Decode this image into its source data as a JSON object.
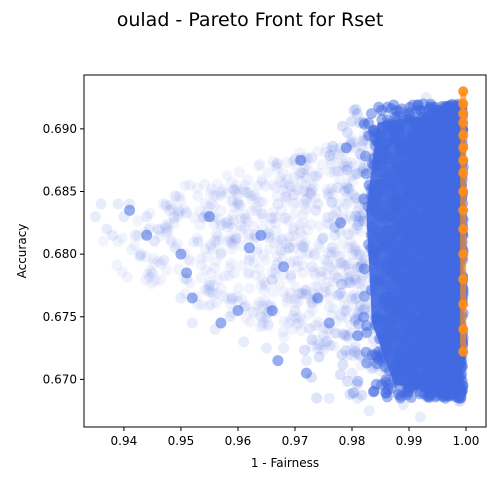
{
  "chart_data": {
    "type": "scatter",
    "title": "oulad - Pareto Front for Rset",
    "xlabel": "1 - Fairness",
    "ylabel": "Accuracy",
    "xlim": [
      0.933,
      1.0035
    ],
    "ylim": [
      0.6662,
      0.6943
    ],
    "xticks": [
      "0.94",
      "0.95",
      "0.96",
      "0.97",
      "0.98",
      "0.99",
      "1.00"
    ],
    "yticks": [
      "0.670",
      "0.675",
      "0.680",
      "0.685",
      "0.690"
    ],
    "grid": false,
    "legend": "none",
    "colors": {
      "rset": "#4169e1",
      "pareto": "#ff8c1a"
    },
    "series": [
      {
        "role": "rset",
        "marker": "circle",
        "alpha": 0.08,
        "points": [
          [
            0.935,
            0.683
          ],
          [
            0.936,
            0.684
          ],
          [
            0.937,
            0.682
          ],
          [
            0.938,
            0.6815
          ],
          [
            0.939,
            0.684
          ],
          [
            0.94,
            0.683
          ],
          [
            0.941,
            0.684
          ],
          [
            0.942,
            0.6815
          ],
          [
            0.943,
            0.68
          ],
          [
            0.944,
            0.683
          ],
          [
            0.945,
            0.6785
          ],
          [
            0.946,
            0.682
          ],
          [
            0.947,
            0.6795
          ],
          [
            0.948,
            0.6835
          ],
          [
            0.949,
            0.6805
          ],
          [
            0.95,
            0.6765
          ],
          [
            0.951,
            0.678
          ],
          [
            0.952,
            0.6745
          ],
          [
            0.953,
            0.681
          ],
          [
            0.954,
            0.683
          ],
          [
            0.955,
            0.6775
          ],
          [
            0.956,
            0.674
          ],
          [
            0.957,
            0.68
          ],
          [
            0.958,
            0.6825
          ],
          [
            0.959,
            0.6765
          ],
          [
            0.96,
            0.684
          ],
          [
            0.961,
            0.673
          ],
          [
            0.962,
            0.6795
          ],
          [
            0.963,
            0.6815
          ],
          [
            0.964,
            0.675
          ],
          [
            0.965,
            0.6725
          ],
          [
            0.966,
            0.678
          ],
          [
            0.967,
            0.684
          ],
          [
            0.968,
            0.6725
          ],
          [
            0.969,
            0.6805
          ],
          [
            0.97,
            0.6755
          ],
          [
            0.971,
            0.6865
          ],
          [
            0.972,
            0.6715
          ],
          [
            0.973,
            0.679
          ],
          [
            0.974,
            0.684
          ],
          [
            0.975,
            0.6735
          ],
          [
            0.976,
            0.6685
          ],
          [
            0.977,
            0.6815
          ],
          [
            0.978,
            0.6885
          ],
          [
            0.979,
            0.6755
          ],
          [
            0.98,
            0.6705
          ],
          [
            0.981,
            0.6685
          ],
          [
            0.982,
            0.6905
          ],
          [
            0.983,
            0.6675
          ],
          [
            0.984,
            0.6835
          ],
          [
            0.985,
            0.6915
          ],
          [
            0.986,
            0.6695
          ],
          [
            0.987,
            0.6755
          ],
          [
            0.988,
            0.6915
          ],
          [
            0.989,
            0.668
          ],
          [
            0.99,
            0.6845
          ],
          [
            0.991,
            0.6905
          ],
          [
            0.992,
            0.667
          ],
          [
            0.993,
            0.6925
          ],
          [
            0.994,
            0.6745
          ],
          [
            0.995,
            0.6915
          ],
          [
            0.996,
            0.6695
          ],
          [
            0.997,
            0.6885
          ],
          [
            0.998,
            0.6715
          ],
          [
            0.999,
            0.6685
          ],
          [
            0.9995,
            0.6895
          ]
        ]
      },
      {
        "role": "rset-highlight",
        "marker": "circle",
        "alpha": 0.55,
        "points": [
          [
            0.941,
            0.6835
          ],
          [
            0.944,
            0.6815
          ],
          [
            0.95,
            0.68
          ],
          [
            0.951,
            0.6785
          ],
          [
            0.952,
            0.6765
          ],
          [
            0.955,
            0.683
          ],
          [
            0.957,
            0.6745
          ],
          [
            0.96,
            0.6755
          ],
          [
            0.962,
            0.6805
          ],
          [
            0.964,
            0.6815
          ],
          [
            0.966,
            0.6755
          ],
          [
            0.967,
            0.6715
          ],
          [
            0.968,
            0.679
          ],
          [
            0.971,
            0.6875
          ],
          [
            0.972,
            0.6705
          ],
          [
            0.974,
            0.6765
          ],
          [
            0.976,
            0.6745
          ],
          [
            0.978,
            0.6825
          ],
          [
            0.979,
            0.6885
          ],
          [
            0.981,
            0.6735
          ],
          [
            0.983,
            0.6855
          ],
          [
            0.985,
            0.6895
          ],
          [
            0.986,
            0.6765
          ],
          [
            0.988,
            0.6705
          ],
          [
            0.99,
            0.6815
          ],
          [
            0.992,
            0.6915
          ],
          [
            0.994,
            0.6865
          ],
          [
            0.995,
            0.6745
          ],
          [
            0.996,
            0.6695
          ],
          [
            0.997,
            0.6905
          ]
        ]
      },
      {
        "role": "pareto-front",
        "marker": "circle",
        "alpha": 0.9,
        "x": 0.9995,
        "y": [
          0.693,
          0.692,
          0.6912,
          0.6905,
          0.6895,
          0.6885,
          0.6875,
          0.6865,
          0.685,
          0.6835,
          0.682,
          0.68,
          0.678,
          0.676,
          0.674,
          0.6722
        ]
      }
    ]
  }
}
